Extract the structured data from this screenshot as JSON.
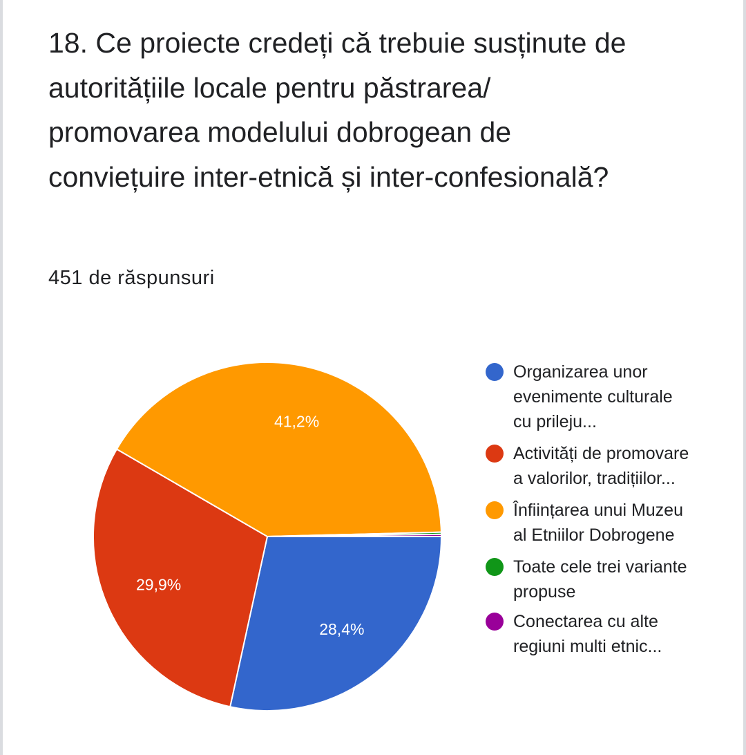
{
  "question": {
    "title": "18. Ce proiecte credeți că trebuie susținute de autoritățiile locale pentru păstrarea/ promovarea modelului dobrogean de conviețuire inter-etnică și inter-confesională?",
    "response_count": "451 de răspunsuri"
  },
  "chart_data": {
    "type": "pie",
    "start_angle_deg": 0,
    "direction": "clockwise",
    "labels": [
      "Organizarea unor evenimente culturale cu prileju...",
      "Activități de promovare a valorilor, tradițiilor...",
      "Înființarea unui Muzeu al Etniilor Dobrogene",
      "Toate cele trei variante propuse",
      "Conectarea cu alte regiuni multi etnic..."
    ],
    "values": [
      28.4,
      29.9,
      41.2,
      0.2,
      0.2
    ],
    "value_labels": [
      "28,4%",
      "29,9%",
      "41,2%",
      "",
      ""
    ],
    "colors": [
      "#3366cc",
      "#dc3912",
      "#ff9900",
      "#109618",
      "#990099"
    ],
    "legend": {
      "placement": "right",
      "items": [
        {
          "label": "Organizarea unor evenimente culturale cu prileju...",
          "color": "#3366cc"
        },
        {
          "label": "Activități de promovare a valorilor, tradițiilor...",
          "color": "#dc3912"
        },
        {
          "label": "Înființarea unui Muzeu al Etniilor Dobrogene",
          "color": "#ff9900"
        },
        {
          "label": "Toate cele trei variante propuse",
          "color": "#109618"
        },
        {
          "label": "Conectarea cu alte regiuni multi etnic...",
          "color": "#990099"
        }
      ]
    }
  }
}
